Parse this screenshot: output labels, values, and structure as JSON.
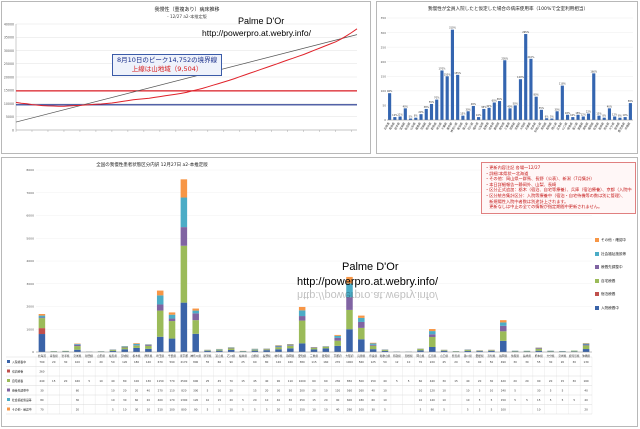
{
  "panel1": {
    "title": "我慢性（重複あり）病床推移",
    "subtitle": "- 12/27 a2-本推定版",
    "watermark_name": "Palme D'Or",
    "watermark_url": "http://powerpro.at.webry.info/",
    "annotation_line1": "8月10日のピーク14,752の境界線",
    "annotation_line2": "上線は山地域（9,504）",
    "colors": {
      "line": "#e0222a",
      "trend": "#555555",
      "peak": "#e0222a",
      "base": "#1a2f8a"
    }
  },
  "panel2": {
    "title": "我慢性が全員入院したと仮定した場合の病床使用率（100%で全室利用相当）",
    "bar_color": "#3465b0"
  },
  "panel3": {
    "title": "全国の我慢性患者状態区分内訳 12月27日 a2-本推定版",
    "watermark_name": "Palme D'Or",
    "watermark_url": "http://powerpro.at.webry.info/",
    "notes": [
      "・更新内容注記 各場～12/27",
      "・詳細:本県状～北海道",
      "・その他：岡山県～群馬、長野（公表）、新潟（7月集計）",
      "・本日詳細報告～静岡外、山梨、長崎",
      "・区分正式追加：栃木（宿泊、自宅等療養）、兵庫（宿泊療養）、京都（入院中他数）、",
      "・区分統合集計区分：入院等療養中（宿泊・自宅待機等の数は別に管理）、",
      "　新規陽性入院中者数は別途計上されます。",
      "　更新なしは中止の全ての情報が指定期間中更新されません。"
    ],
    "legend": [
      {
        "label": "入院療養中",
        "color": "#3a63a8"
      },
      {
        "label": "宿泊療養",
        "color": "#c0504d"
      },
      {
        "label": "自宅療養",
        "color": "#9bbb59"
      },
      {
        "label": "療養先調整中",
        "color": "#8064a2"
      },
      {
        "label": "社会福祉施設等",
        "color": "#4bacc6"
      },
      {
        "label": "その他・確認中",
        "color": "#f79646"
      }
    ]
  },
  "chart_data": [
    {
      "type": "line",
      "title": "我慢性（重複あり）病床推移",
      "ylim": [
        0,
        40000
      ],
      "series": [
        {
          "values": [
            10400,
            10100,
            9900,
            9600,
            9400,
            9200,
            9100,
            9050,
            9000,
            9000,
            9100,
            9200,
            9300,
            9450,
            9600,
            9700,
            9800,
            10000,
            10200,
            10500,
            10800,
            11100,
            11400,
            11600,
            11800,
            12000,
            12300,
            12600,
            12900,
            13200,
            13500,
            13800,
            14200,
            14700,
            15200,
            15700,
            16300,
            16900,
            17500,
            18100,
            18700,
            19400,
            20100,
            20800,
            21500,
            22200,
            22900,
            23600,
            24300,
            25000,
            25700,
            26400,
            27100,
            27800,
            28500,
            29300,
            30100,
            30900,
            31700,
            32500,
            33300,
            34300,
            35500,
            36800,
            38200
          ]
        }
      ],
      "reference_lines": [
        14752,
        9504
      ]
    },
    {
      "type": "bar",
      "title": "我慢性が全員入院したと仮定した場合の病床使用率（100%で全室利用相当）",
      "categories": [
        "北海道",
        "青森県",
        "岩手県",
        "宮城県",
        "秋田県",
        "山形県",
        "福島県",
        "茨城県",
        "栃木県",
        "群馬県",
        "埼玉県",
        "千葉県",
        "東京都",
        "神奈川県",
        "新潟県",
        "富山県",
        "石川県",
        "福井県",
        "山梨県",
        "長野県",
        "岐阜県",
        "静岡県",
        "愛知県",
        "三重県",
        "滋賀県",
        "京都府",
        "大阪府",
        "兵庫県",
        "奈良県",
        "和歌山県",
        "鳥取県",
        "島根県",
        "岡山県",
        "広島県",
        "山口県",
        "徳島県",
        "香川県",
        "愛媛県",
        "高知県",
        "福岡県",
        "佐賀県",
        "長崎県",
        "熊本県",
        "大分県",
        "宮崎県",
        "鹿児島県",
        "沖縄県"
      ],
      "values": [
        92,
        10,
        12,
        40,
        5,
        8,
        20,
        38,
        55,
        70,
        170,
        150,
        310,
        155,
        15,
        30,
        48,
        10,
        38,
        42,
        60,
        65,
        205,
        40,
        50,
        140,
        295,
        210,
        80,
        35,
        6,
        5,
        30,
        118,
        18,
        10,
        18,
        12,
        22,
        160,
        15,
        8,
        40,
        12,
        8,
        10,
        58
      ],
      "ylim": [
        0,
        350
      ]
    },
    {
      "type": "bar",
      "title": "全国の我慢性患者状態区分内訳 12月27日 a2-本推定版",
      "categories": [
        "北海道",
        "青森県",
        "岩手県",
        "宮城県",
        "秋田県",
        "山形県",
        "福島県",
        "茨城県",
        "栃木県",
        "群馬県",
        "埼玉県",
        "千葉県",
        "東京都",
        "神奈川県",
        "新潟県",
        "富山県",
        "石川県",
        "福井県",
        "山梨県",
        "長野県",
        "岐阜県",
        "静岡県",
        "愛知県",
        "三重県",
        "滋賀県",
        "京都府",
        "大阪府",
        "兵庫県",
        "奈良県",
        "和歌山県",
        "鳥取県",
        "島根県",
        "岡山県",
        "広島県",
        "山口県",
        "徳島県",
        "香川県",
        "愛媛県",
        "高知県",
        "福岡県",
        "佐賀県",
        "長崎県",
        "熊本県",
        "大分県",
        "宮崎県",
        "鹿児島県",
        "沖縄県"
      ],
      "series": [
        {
          "name": "入院療養中",
          "values": [
            790,
            20,
            30,
            100,
            10,
            20,
            50,
            120,
            180,
            140,
            670,
            590,
            2170,
            800,
            55,
            60,
            90,
            25,
            60,
            80,
            120,
            160,
            380,
            115,
            160,
            270,
            1000,
            560,
            125,
            50,
            12,
            10,
            70,
            220,
            45,
            20,
            50,
            40,
            50,
            490,
            30,
            30,
            55,
            30,
            20,
            30,
            130
          ]
        },
        {
          "name": "宿泊療養",
          "values": [
            260,
            0,
            0,
            0,
            0,
            0,
            0,
            0,
            0,
            0,
            0,
            0,
            0,
            0,
            0,
            0,
            0,
            0,
            0,
            0,
            0,
            0,
            0,
            0,
            0,
            0,
            0,
            0,
            0,
            0,
            0,
            0,
            0,
            0,
            0,
            0,
            0,
            0,
            0,
            0,
            0,
            0,
            0,
            0,
            0,
            0,
            0
          ]
        },
        {
          "name": "自宅療養",
          "values": [
            440,
            15,
            20,
            160,
            5,
            10,
            40,
            80,
            100,
            130,
            1150,
            770,
            2500,
            600,
            25,
            45,
            70,
            15,
            45,
            40,
            90,
            110,
            1000,
            60,
            60,
            230,
            850,
            500,
            150,
            40,
            5,
            5,
            60,
            440,
            30,
            15,
            40,
            20,
            30,
            420,
            20,
            20,
            90,
            20,
            15,
            30,
            160
          ]
        },
        {
          "name": "療養先調整中",
          "values": [
            30,
            0,
            0,
            60,
            0,
            0,
            10,
            20,
            20,
            40,
            270,
            110,
            820,
            300,
            5,
            10,
            20,
            0,
            15,
            20,
            30,
            30,
            200,
            20,
            10,
            120,
            560,
            260,
            40,
            10,
            0,
            0,
            10,
            120,
            10,
            0,
            10,
            5,
            10,
            240,
            5,
            0,
            30,
            5,
            5,
            0,
            40
          ]
        },
        {
          "name": "社会福祉施設等",
          "values": [
            80,
            0,
            0,
            30,
            0,
            0,
            10,
            30,
            60,
            20,
            400,
            170,
            1300,
            120,
            10,
            15,
            20,
            5,
            20,
            10,
            40,
            30,
            250,
            15,
            20,
            90,
            600,
            180,
            60,
            10,
            0,
            0,
            10,
            140,
            10,
            0,
            10,
            5,
            5,
            150,
            5,
            5,
            15,
            5,
            5,
            5,
            40
          ]
        },
        {
          "name": "その他・確認中",
          "values": [
            70,
            0,
            0,
            20,
            0,
            0,
            5,
            10,
            30,
            10,
            210,
            100,
            800,
            90,
            5,
            5,
            10,
            5,
            5,
            5,
            20,
            20,
            150,
            10,
            10,
            40,
            290,
            100,
            30,
            5,
            0,
            0,
            5,
            90,
            5,
            0,
            5,
            5,
            5,
            100,
            0,
            0,
            10,
            0,
            0,
            0,
            20
          ]
        }
      ],
      "ylim": [
        0,
        8000
      ]
    }
  ]
}
